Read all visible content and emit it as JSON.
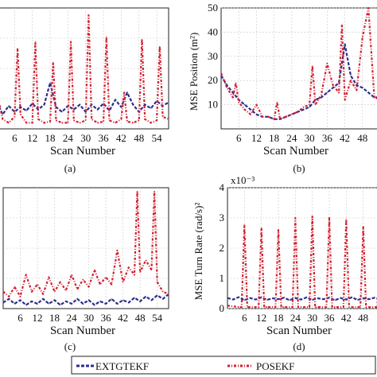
{
  "legend": {
    "series_a": "EXTGTEKF",
    "series_b": "POSEKF",
    "colors": {
      "series_a": "#2b2f8c",
      "series_b": "#d41f2f"
    }
  },
  "chart_data": [
    {
      "id": "a",
      "type": "line",
      "caption": "(a)",
      "xlabel": "Scan Number",
      "ylabel": "",
      "xticks": [
        6,
        12,
        18,
        24,
        30,
        36,
        42,
        48,
        54
      ],
      "yticks": [],
      "xlim": [
        0,
        58
      ],
      "ylim": [
        0,
        1
      ],
      "grid": true,
      "legend": "bottom",
      "series": [
        {
          "name": "EXTGTEKF",
          "x": [
            0,
            2,
            4,
            6,
            8,
            10,
            12,
            14,
            16,
            18,
            20,
            22,
            24,
            26,
            28,
            30,
            32,
            34,
            36,
            38,
            40,
            42,
            44,
            46,
            48,
            50,
            52,
            54,
            56,
            58
          ],
          "values": [
            0.22,
            0.12,
            0.19,
            0.14,
            0.18,
            0.15,
            0.21,
            0.16,
            0.2,
            0.38,
            0.18,
            0.14,
            0.19,
            0.16,
            0.2,
            0.14,
            0.2,
            0.16,
            0.21,
            0.15,
            0.24,
            0.18,
            0.3,
            0.2,
            0.14,
            0.2,
            0.17,
            0.23,
            0.19,
            0.22
          ]
        },
        {
          "name": "POSEKF",
          "x": [
            0,
            2,
            4,
            6,
            7,
            8,
            10,
            12,
            13,
            14,
            16,
            18,
            19,
            20,
            22,
            24,
            25,
            26,
            28,
            30,
            31,
            32,
            34,
            36,
            37,
            38,
            40,
            42,
            43,
            44,
            46,
            48,
            49,
            50,
            52,
            54,
            55,
            56,
            58
          ],
          "values": [
            0.3,
            0.08,
            0.05,
            0.1,
            0.66,
            0.12,
            0.05,
            0.05,
            0.72,
            0.08,
            0.05,
            0.06,
            0.55,
            0.07,
            0.05,
            0.05,
            0.72,
            0.07,
            0.05,
            0.07,
            0.94,
            0.08,
            0.05,
            0.06,
            0.76,
            0.07,
            0.05,
            0.08,
            0.3,
            0.06,
            0.05,
            0.07,
            0.74,
            0.08,
            0.05,
            0.07,
            0.68,
            0.1,
            0.08
          ]
        }
      ]
    },
    {
      "id": "b",
      "type": "line",
      "caption": "(b)",
      "xlabel": "Scan Number",
      "ylabel": "MSE Position (m²)",
      "xticks": [
        6,
        12,
        18,
        24,
        30,
        36,
        42,
        48
      ],
      "yticks": [
        10,
        20,
        30,
        40,
        50
      ],
      "xlim": [
        0,
        54
      ],
      "ylim": [
        0,
        50
      ],
      "grid": true,
      "legend": "bottom",
      "series": [
        {
          "name": "EXTGTEKF",
          "x": [
            0,
            2,
            4,
            6,
            8,
            10,
            12,
            14,
            16,
            18,
            20,
            22,
            24,
            26,
            28,
            30,
            32,
            34,
            36,
            38,
            40,
            42,
            44,
            46,
            48,
            50,
            52,
            54
          ],
          "values": [
            22,
            18,
            15,
            12,
            10,
            8,
            6,
            5,
            5,
            4,
            4,
            5,
            6,
            7,
            8,
            9,
            12,
            13,
            15,
            17,
            19,
            35,
            22,
            18,
            17,
            15,
            13,
            13
          ]
        },
        {
          "name": "POSEKF",
          "x": [
            0,
            1,
            2,
            4,
            5,
            6,
            8,
            10,
            12,
            14,
            16,
            18,
            19,
            20,
            22,
            24,
            26,
            28,
            30,
            31,
            32,
            34,
            36,
            38,
            40,
            41,
            42,
            44,
            46,
            48,
            50,
            52,
            54
          ],
          "values": [
            23,
            20,
            17,
            13,
            19,
            11,
            8,
            6,
            10,
            5,
            5,
            4,
            11,
            4,
            5,
            6,
            7,
            9,
            10,
            26,
            10,
            14,
            27,
            18,
            15,
            43,
            12,
            20,
            16,
            38,
            50,
            13,
            12
          ]
        }
      ]
    },
    {
      "id": "c",
      "type": "line",
      "caption": "(c)",
      "xlabel": "Scan Number",
      "ylabel": "",
      "xticks": [
        6,
        12,
        18,
        24,
        30,
        36,
        42,
        48,
        54
      ],
      "yticks": [],
      "xlim": [
        0,
        58
      ],
      "ylim": [
        0,
        1
      ],
      "grid": true,
      "legend": "bottom",
      "series": [
        {
          "name": "EXTGTEKF",
          "x": [
            0,
            2,
            4,
            6,
            8,
            10,
            12,
            14,
            16,
            18,
            20,
            22,
            24,
            26,
            28,
            30,
            32,
            34,
            36,
            38,
            40,
            42,
            44,
            46,
            48,
            50,
            52,
            54,
            56,
            58
          ],
          "values": [
            0.05,
            0.08,
            0.04,
            0.07,
            0.03,
            0.06,
            0.04,
            0.08,
            0.04,
            0.07,
            0.03,
            0.06,
            0.04,
            0.08,
            0.04,
            0.07,
            0.03,
            0.06,
            0.04,
            0.08,
            0.04,
            0.07,
            0.05,
            0.09,
            0.06,
            0.1,
            0.07,
            0.11,
            0.08,
            0.12
          ]
        },
        {
          "name": "POSEKF",
          "x": [
            0,
            2,
            4,
            6,
            8,
            10,
            12,
            14,
            16,
            18,
            20,
            22,
            24,
            26,
            28,
            30,
            32,
            34,
            36,
            38,
            40,
            42,
            44,
            46,
            47,
            48,
            50,
            52,
            53,
            54,
            56,
            58
          ],
          "values": [
            0.14,
            0.1,
            0.18,
            0.1,
            0.28,
            0.14,
            0.2,
            0.12,
            0.26,
            0.14,
            0.22,
            0.15,
            0.28,
            0.16,
            0.24,
            0.18,
            0.32,
            0.2,
            0.26,
            0.2,
            0.48,
            0.22,
            0.34,
            0.28,
            0.97,
            0.3,
            0.4,
            0.32,
            0.97,
            0.22,
            0.14,
            0.12
          ]
        }
      ]
    },
    {
      "id": "d",
      "type": "line",
      "caption": "(d)",
      "xlabel": "Scan Number",
      "ylabel": "MSE  Turn Rate (rad/s)²",
      "axis_multiplier": "x10⁻³",
      "xticks": [
        6,
        12,
        18,
        24,
        30,
        36,
        42,
        48
      ],
      "yticks": [
        0,
        1,
        2,
        3,
        4
      ],
      "xlim": [
        0,
        54
      ],
      "ylim": [
        0,
        4
      ],
      "grid": true,
      "legend": "bottom",
      "series": [
        {
          "name": "EXTGTEKF",
          "x": [
            0,
            2,
            4,
            6,
            8,
            10,
            12,
            14,
            16,
            18,
            20,
            22,
            24,
            26,
            28,
            30,
            32,
            34,
            36,
            38,
            40,
            42,
            44,
            46,
            48,
            50,
            52,
            54
          ],
          "values": [
            0.35,
            0.3,
            0.38,
            0.28,
            0.35,
            0.3,
            0.37,
            0.29,
            0.34,
            0.31,
            0.36,
            0.28,
            0.35,
            0.3,
            0.37,
            0.29,
            0.34,
            0.31,
            0.36,
            0.28,
            0.35,
            0.3,
            0.37,
            0.29,
            0.34,
            0.31,
            0.36,
            0.3
          ]
        },
        {
          "name": "POSEKF",
          "x": [
            0,
            4,
            5,
            6,
            7,
            8,
            11,
            12,
            13,
            14,
            17,
            18,
            19,
            20,
            23,
            24,
            25,
            26,
            29,
            30,
            31,
            32,
            35,
            36,
            37,
            38,
            41,
            42,
            43,
            44,
            47,
            48,
            49,
            50,
            53,
            54
          ],
          "values": [
            0.1,
            0.05,
            0.05,
            2.75,
            0.05,
            0.05,
            0.05,
            2.65,
            0.05,
            0.05,
            0.05,
            2.6,
            0.05,
            0.05,
            0.05,
            3.0,
            0.05,
            0.05,
            0.05,
            3.05,
            0.05,
            0.05,
            0.05,
            3.0,
            0.05,
            0.05,
            0.05,
            2.95,
            0.05,
            0.05,
            0.05,
            2.7,
            0.05,
            0.05,
            0.05,
            1.7
          ]
        }
      ]
    }
  ]
}
